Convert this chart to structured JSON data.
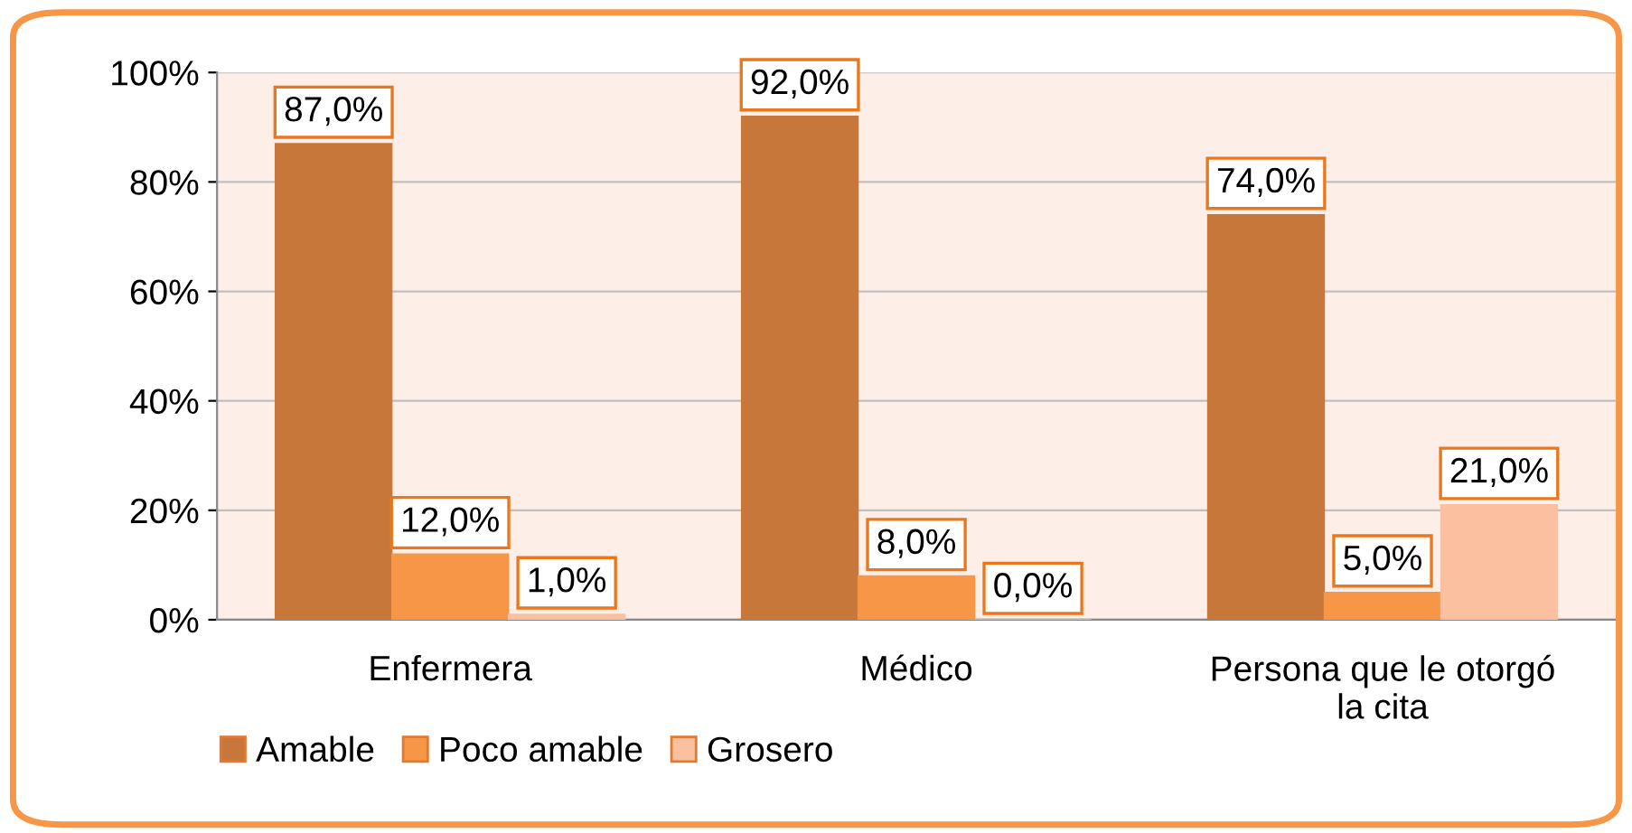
{
  "chart_data": {
    "type": "bar",
    "categories": [
      "Enfermera",
      "Médico",
      "Persona que le otorgó\nla cita"
    ],
    "series": [
      {
        "name": "Amable",
        "color": "#c8773a",
        "values": [
          87.0,
          92.0,
          74.0
        ],
        "value_labels": [
          "87,0%",
          "92,0%",
          "74,0%"
        ]
      },
      {
        "name": "Poco amable",
        "color": "#f79646",
        "values": [
          12.0,
          8.0,
          5.0
        ],
        "value_labels": [
          "12,0%",
          "8,0%",
          "5,0%"
        ]
      },
      {
        "name": "Grosero",
        "color": "#fac0a0",
        "values": [
          1.0,
          0.0,
          21.0
        ],
        "value_labels": [
          "1,0%",
          "0,0%",
          "21,0%"
        ]
      }
    ],
    "ylim": [
      0,
      100
    ],
    "yticks": [
      {
        "value": 0,
        "label": "0%"
      },
      {
        "value": 20,
        "label": "20%"
      },
      {
        "value": 40,
        "label": "40%"
      },
      {
        "value": 60,
        "label": "60%"
      },
      {
        "value": 80,
        "label": "80%"
      },
      {
        "value": 100,
        "label": "100%"
      }
    ],
    "grid": "y",
    "legend": "bottom left"
  }
}
